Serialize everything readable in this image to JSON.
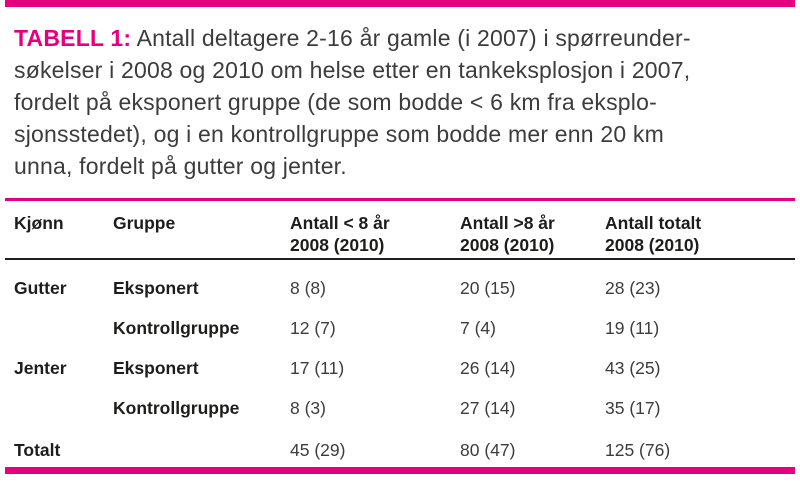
{
  "accent_color": "#e6007e",
  "caption": {
    "label": "TABELL 1:",
    "lines": [
      "Antall deltagere 2-16 år gamle (i 2007) i spørreunder-",
      "søkelser i 2008 og 2010 om helse etter en tankeksplosjon i 2007,",
      "fordelt på eksponert gruppe (de som bodde < 6 km fra eksplo-",
      "sjonsstedet), og i en kontrollgruppe som bodde mer enn 20 km",
      "unna, fordelt på gutter og jenter."
    ]
  },
  "table": {
    "columns": [
      {
        "line1": "Kjønn",
        "line2": ""
      },
      {
        "line1": "Gruppe",
        "line2": ""
      },
      {
        "line1": "Antall < 8 år",
        "line2": "2008 (2010)"
      },
      {
        "line1": "Antall >8 år",
        "line2": "2008 (2010)"
      },
      {
        "line1": "Antall totalt",
        "line2": "2008 (2010)"
      }
    ],
    "rows": [
      {
        "kjonn": "Gutter",
        "gruppe": "Eksponert",
        "under8": "8 (8)",
        "over8": "20 (15)",
        "totalt": "28 (23)"
      },
      {
        "kjonn": "",
        "gruppe": "Kontrollgruppe",
        "under8": "12 (7)",
        "over8": "7 (4)",
        "totalt": "19 (11)"
      },
      {
        "kjonn": "Jenter",
        "gruppe": "Eksponert",
        "under8": "17 (11)",
        "over8": "26 (14)",
        "totalt": "43 (25)"
      },
      {
        "kjonn": "",
        "gruppe": "Kontrollgruppe",
        "under8": "8 (3)",
        "over8": "27 (14)",
        "totalt": "35 (17)"
      },
      {
        "kjonn": "Totalt",
        "gruppe": "",
        "under8": "45 (29)",
        "over8": "80 (47)",
        "totalt": "125 (76)"
      }
    ]
  }
}
